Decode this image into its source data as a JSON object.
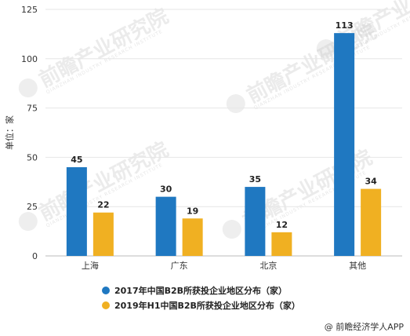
{
  "chart_data": {
    "type": "bar",
    "categories": [
      "上海",
      "广东",
      "北京",
      "其他"
    ],
    "series": [
      {
        "name": "2017年中国B2B所获投企业地区分布（家）",
        "values": [
          45,
          30,
          35,
          113
        ],
        "color": "#1f78c1"
      },
      {
        "name": "2019年H1中国B2B所获投企业地区分布（家）",
        "values": [
          22,
          19,
          12,
          34
        ],
        "color": "#f0b022"
      }
    ],
    "title": "",
    "xlabel": "",
    "ylabel": "单位：家",
    "ylim": [
      0,
      125
    ],
    "yticks": [
      0,
      25,
      50,
      75,
      100,
      125
    ],
    "grid": true,
    "legend_position": "bottom-left"
  },
  "source": "@ 前瞻经济学人APP",
  "watermark": {
    "text": "前瞻产业研究院",
    "subtext": "QIANZHAN INDUSTRY RESEARCH INSTITUTE"
  }
}
